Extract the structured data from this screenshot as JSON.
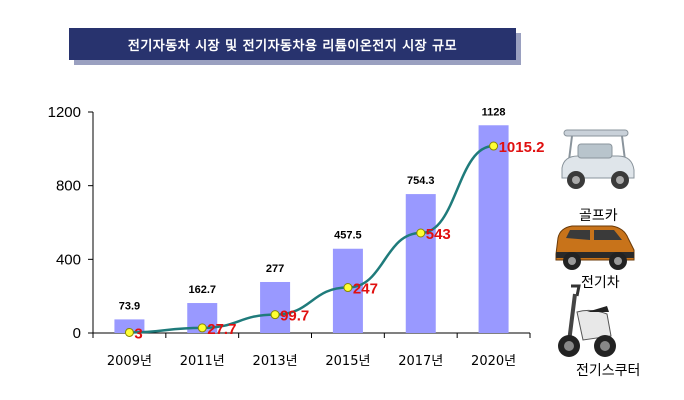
{
  "title": "전기자동차 시장 및 전기자동차용 리튬이온전지 시장 규모",
  "vehicles": [
    {
      "label": "골프카",
      "icon": "golf-cart-icon"
    },
    {
      "label": "전기차",
      "icon": "electric-car-icon"
    },
    {
      "label": "전기스쿠터",
      "icon": "electric-scooter-icon"
    }
  ],
  "colors": {
    "title_bg": "#28336e",
    "bar": "#9999ff",
    "line": "#1f7b7b",
    "marker": "#ffff33",
    "line_label": "#e01010"
  },
  "chart_data": {
    "type": "bar",
    "categories": [
      "2009년",
      "2011년",
      "2013년",
      "2015년",
      "2017년",
      "2020년"
    ],
    "ylim": [
      0,
      1200
    ],
    "yticks": [
      0,
      400,
      800,
      1200
    ],
    "series": [
      {
        "type": "bar",
        "values": [
          73.9,
          162.7,
          277,
          457.5,
          754.3,
          1128
        ],
        "labels": [
          "73.9",
          "162.7",
          "277",
          "457.5",
          "754.3",
          "1128"
        ]
      },
      {
        "type": "line",
        "values": [
          3,
          27.7,
          99.7,
          247,
          543,
          1015.2
        ],
        "labels": [
          "3",
          "27.7",
          "99.7",
          "247",
          "543",
          "1015.2"
        ]
      }
    ],
    "grid": false
  }
}
